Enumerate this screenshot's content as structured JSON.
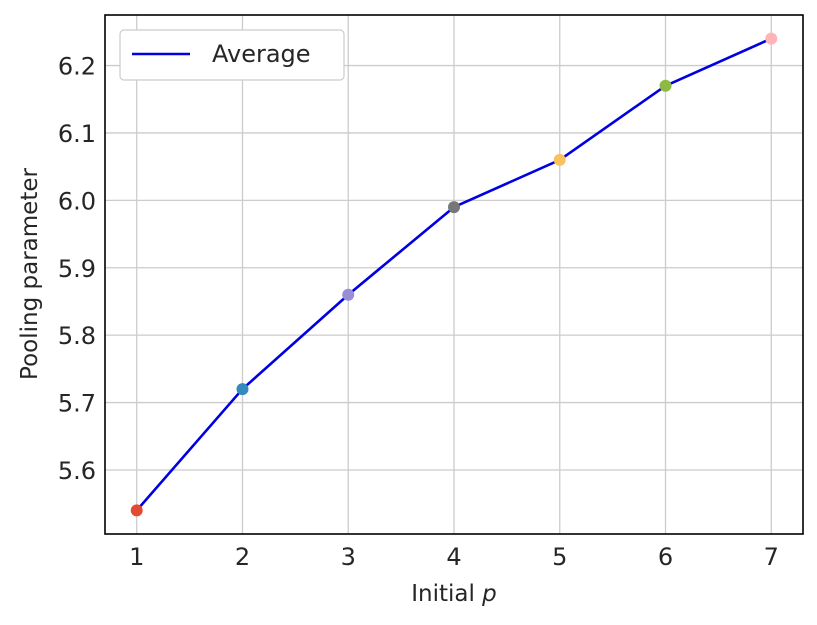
{
  "chart_data": {
    "type": "line",
    "x": [
      1,
      2,
      3,
      4,
      5,
      6,
      7
    ],
    "series": [
      {
        "name": "Average",
        "values": [
          5.54,
          5.72,
          5.86,
          5.99,
          6.06,
          6.17,
          6.24
        ],
        "color": "#0000e0"
      }
    ],
    "point_colors": [
      "#e24a33",
      "#348abd",
      "#988ed5",
      "#777777",
      "#fbc15e",
      "#8eba42",
      "#ffb5b8"
    ],
    "xlabel_prefix": "Initial ",
    "xlabel_var": "p",
    "ylabel": "Pooling parameter",
    "xticks": [
      "1",
      "2",
      "3",
      "4",
      "5",
      "6",
      "7"
    ],
    "yticks": [
      "5.6",
      "5.7",
      "5.8",
      "5.9",
      "6.0",
      "6.1",
      "6.2"
    ],
    "xlim": [
      0.7,
      7.3
    ],
    "ylim": [
      5.505,
      6.275
    ],
    "grid": true,
    "legend_position": "upper-left"
  }
}
